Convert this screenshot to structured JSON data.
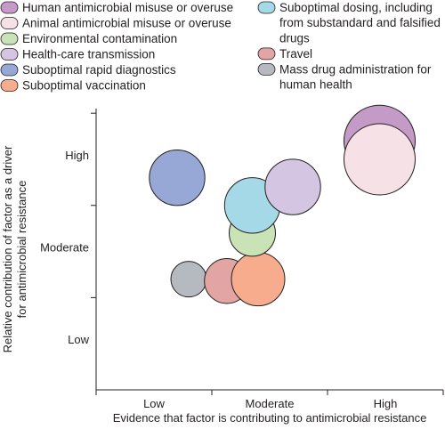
{
  "chart_data": {
    "type": "bubble",
    "x_levels": [
      "Low",
      "Moderate",
      "High"
    ],
    "y_levels": [
      "Low",
      "Moderate",
      "High"
    ],
    "xlabel": "Evidence that factor is contributing to antimicrobial resistance",
    "ylabel": [
      "Relative contribution of factor as a driver",
      "for antimicrobial resistance"
    ],
    "x_range": [
      0.5,
      3.5
    ],
    "y_range": [
      0.5,
      3.55
    ],
    "legend_position": "top",
    "series": [
      {
        "name": "Human antimicrobial misuse or overuse",
        "legend_lines": [
          "Human antimicrobial misuse or overuse"
        ],
        "color": "#c49bc6",
        "x": 2.95,
        "y": 3.2,
        "size": 1.0
      },
      {
        "name": "Animal antimicrobial misuse or overuse",
        "legend_lines": [
          "Animal antimicrobial misuse or overuse"
        ],
        "color": "#f6e1e6",
        "x": 2.95,
        "y": 3.0,
        "size": 1.0
      },
      {
        "name": "Environmental contamination",
        "legend_lines": [
          "Environmental contamination"
        ],
        "color": "#c9e2b6",
        "x": 1.85,
        "y": 2.2,
        "size": 0.65
      },
      {
        "name": "Health-care transmission",
        "legend_lines": [
          "Health-care transmission"
        ],
        "color": "#d4c6e3",
        "x": 2.2,
        "y": 2.7,
        "size": 0.78
      },
      {
        "name": "Suboptimal rapid diagnostics",
        "legend_lines": [
          "Suboptimal rapid diagnostics"
        ],
        "color": "#97a7d6",
        "x": 1.2,
        "y": 2.8,
        "size": 0.78
      },
      {
        "name": "Suboptimal vaccination",
        "legend_lines": [
          "Suboptimal vaccination"
        ],
        "color": "#f7ac8e",
        "x": 1.9,
        "y": 1.7,
        "size": 0.75
      },
      {
        "name": "Suboptimal dosing, including from substandard and falsified drugs",
        "legend_lines": [
          "Suboptimal dosing, including",
          "from substandard and falsified",
          "drugs"
        ],
        "color": "#a5d9e7",
        "x": 1.85,
        "y": 2.5,
        "size": 0.78
      },
      {
        "name": "Travel",
        "legend_lines": [
          "Travel"
        ],
        "color": "#e3a5a3",
        "x": 1.63,
        "y": 1.68,
        "size": 0.63
      },
      {
        "name": "Mass drug administration for human health",
        "legend_lines": [
          "Mass drug administration for",
          "human health"
        ],
        "color": "#b5bac0",
        "x": 1.3,
        "y": 1.7,
        "size": 0.5
      }
    ],
    "draw_order": [
      "Mass drug administration for human health",
      "Travel",
      "Suboptimal vaccination",
      "Environmental contamination",
      "Suboptimal dosing, including from substandard and falsified drugs",
      "Suboptimal rapid diagnostics",
      "Health-care transmission",
      "Human antimicrobial misuse or overuse",
      "Animal antimicrobial misuse or overuse"
    ],
    "legend_order": [
      "Human antimicrobial misuse or overuse",
      "Animal antimicrobial misuse or overuse",
      "Environmental contamination",
      "Health-care transmission",
      "Suboptimal rapid diagnostics",
      "Suboptimal vaccination",
      "Suboptimal dosing, including from substandard and falsified drugs",
      "Travel",
      "Mass drug administration for human health"
    ]
  }
}
